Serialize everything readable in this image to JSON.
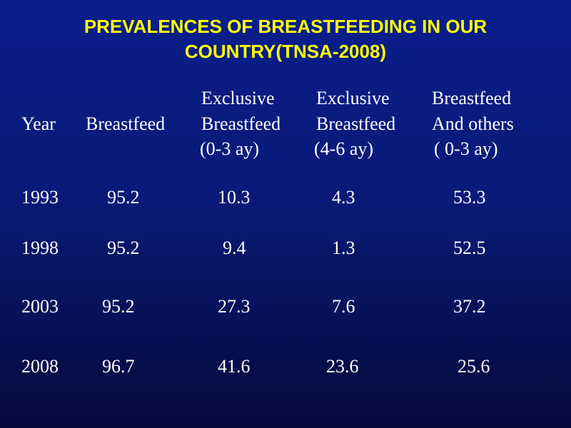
{
  "chart_data": {
    "type": "table",
    "title_line1": "PREVALENCES OF  BREASTFEEDING IN OUR",
    "title_line2": "COUNTRY(TNSA-2008)",
    "columns": [
      {
        "lines": [
          "",
          "Year",
          ""
        ]
      },
      {
        "lines": [
          "",
          "Breastfeed",
          ""
        ]
      },
      {
        "lines": [
          "Exclusive",
          "Breastfeed",
          "(0-3 ay)"
        ]
      },
      {
        "lines": [
          "Exclusive",
          "Breastfeed",
          "(4-6 ay)"
        ]
      },
      {
        "lines": [
          "Breastfeed",
          "And others",
          "( 0-3 ay)"
        ]
      }
    ],
    "rows": [
      {
        "year": "1993",
        "values": [
          "95.2",
          "10.3",
          "4.3",
          "53.3"
        ]
      },
      {
        "year": "1998",
        "values": [
          "95.2",
          "9.4",
          "1.3",
          "52.5"
        ]
      },
      {
        "year": "2003",
        "values": [
          "95.2",
          "27.3",
          "7.6",
          "37.2"
        ]
      },
      {
        "year": "2008",
        "values": [
          "96.7",
          "41.6",
          "23.6",
          "25.6"
        ]
      }
    ]
  }
}
